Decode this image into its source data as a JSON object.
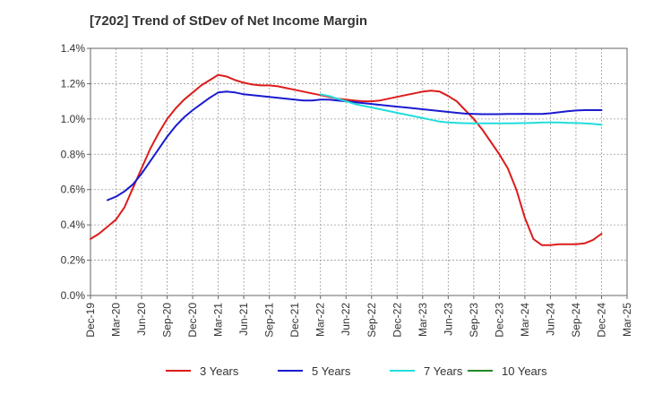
{
  "chart_data": {
    "type": "line",
    "title": "[7202]  Trend of StDev of Net Income Margin",
    "xlabel": "",
    "ylabel": "",
    "x_ticks": [
      "Dec-19",
      "Mar-20",
      "Jun-20",
      "Sep-20",
      "Dec-20",
      "Mar-21",
      "Jun-21",
      "Sep-21",
      "Dec-21",
      "Mar-22",
      "Jun-22",
      "Sep-22",
      "Dec-22",
      "Mar-23",
      "Jun-23",
      "Sep-23",
      "Dec-23",
      "Mar-24",
      "Jun-24",
      "Sep-24",
      "Dec-24",
      "Mar-25"
    ],
    "y_ticks": [
      "0.0%",
      "0.2%",
      "0.4%",
      "0.6%",
      "0.8%",
      "1.0%",
      "1.2%",
      "1.4%"
    ],
    "ylim": [
      0,
      1.4
    ],
    "grid": true,
    "legend_position": "bottom",
    "series": [
      {
        "name": "3 Years",
        "color": "#dd1c1c",
        "x": [
          "Dec-19",
          "Jan-20",
          "Feb-20",
          "Mar-20",
          "Apr-20",
          "May-20",
          "Jun-20",
          "Jul-20",
          "Aug-20",
          "Sep-20",
          "Oct-20",
          "Nov-20",
          "Dec-20",
          "Jan-21",
          "Feb-21",
          "Mar-21",
          "Apr-21",
          "May-21",
          "Jun-21",
          "Jul-21",
          "Aug-21",
          "Sep-21",
          "Oct-21",
          "Nov-21",
          "Dec-21",
          "Jan-22",
          "Feb-22",
          "Mar-22",
          "Apr-22",
          "May-22",
          "Jun-22",
          "Jul-22",
          "Aug-22",
          "Sep-22",
          "Oct-22",
          "Nov-22",
          "Dec-22",
          "Jan-23",
          "Feb-23",
          "Mar-23",
          "Apr-23",
          "May-23",
          "Jun-23",
          "Jul-23",
          "Aug-23",
          "Sep-23",
          "Oct-23",
          "Nov-23",
          "Dec-23",
          "Jan-24",
          "Feb-24",
          "Mar-24",
          "Apr-24",
          "May-24",
          "Jun-24",
          "Jul-24",
          "Aug-24",
          "Sep-24",
          "Oct-24",
          "Nov-24",
          "Dec-24"
        ],
        "values": [
          0.32,
          0.35,
          0.39,
          0.43,
          0.5,
          0.61,
          0.72,
          0.83,
          0.92,
          1.0,
          1.06,
          1.11,
          1.15,
          1.19,
          1.22,
          1.25,
          1.24,
          1.22,
          1.205,
          1.195,
          1.19,
          1.19,
          1.185,
          1.175,
          1.165,
          1.155,
          1.145,
          1.135,
          1.125,
          1.115,
          1.11,
          1.105,
          1.1,
          1.1,
          1.105,
          1.115,
          1.125,
          1.135,
          1.145,
          1.155,
          1.16,
          1.155,
          1.13,
          1.1,
          1.05,
          1.0,
          0.94,
          0.87,
          0.8,
          0.72,
          0.6,
          0.44,
          0.32,
          0.285,
          0.285,
          0.29,
          0.29,
          0.29,
          0.295,
          0.315,
          0.35
        ]
      },
      {
        "name": "5 Years",
        "color": "#1a1ad0",
        "x": [
          "Feb-20",
          "Mar-20",
          "Apr-20",
          "May-20",
          "Jun-20",
          "Jul-20",
          "Aug-20",
          "Sep-20",
          "Oct-20",
          "Nov-20",
          "Dec-20",
          "Jan-21",
          "Feb-21",
          "Mar-21",
          "Apr-21",
          "May-21",
          "Jun-21",
          "Jul-21",
          "Aug-21",
          "Sep-21",
          "Oct-21",
          "Nov-21",
          "Dec-21",
          "Jan-22",
          "Feb-22",
          "Mar-22",
          "Apr-22",
          "May-22",
          "Jun-22",
          "Jul-22",
          "Aug-22",
          "Sep-22",
          "Oct-22",
          "Nov-22",
          "Dec-22",
          "Jan-23",
          "Feb-23",
          "Mar-23",
          "Apr-23",
          "May-23",
          "Jun-23",
          "Jul-23",
          "Aug-23",
          "Sep-23",
          "Oct-23",
          "Nov-23",
          "Dec-23",
          "Jan-24",
          "Feb-24",
          "Mar-24",
          "Apr-24",
          "May-24",
          "Jun-24",
          "Jul-24",
          "Aug-24",
          "Sep-24",
          "Oct-24",
          "Nov-24",
          "Dec-24"
        ],
        "values": [
          0.54,
          0.56,
          0.59,
          0.63,
          0.69,
          0.76,
          0.83,
          0.9,
          0.96,
          1.01,
          1.05,
          1.085,
          1.12,
          1.15,
          1.155,
          1.15,
          1.14,
          1.135,
          1.13,
          1.125,
          1.12,
          1.115,
          1.11,
          1.105,
          1.105,
          1.11,
          1.11,
          1.105,
          1.1,
          1.095,
          1.09,
          1.085,
          1.08,
          1.075,
          1.07,
          1.065,
          1.06,
          1.055,
          1.05,
          1.045,
          1.04,
          1.035,
          1.03,
          1.028,
          1.027,
          1.027,
          1.027,
          1.028,
          1.028,
          1.029,
          1.028,
          1.028,
          1.032,
          1.038,
          1.044,
          1.048,
          1.05,
          1.05,
          1.05
        ]
      },
      {
        "name": "7 Years",
        "color": "#22dddd",
        "x": [
          "Mar-22",
          "Apr-22",
          "May-22",
          "Jun-22",
          "Jul-22",
          "Aug-22",
          "Sep-22",
          "Oct-22",
          "Nov-22",
          "Dec-22",
          "Jan-23",
          "Feb-23",
          "Mar-23",
          "Apr-23",
          "May-23",
          "Jun-23",
          "Jul-23",
          "Aug-23",
          "Sep-23",
          "Oct-23",
          "Nov-23",
          "Dec-23",
          "Jan-24",
          "Feb-24",
          "Mar-24",
          "Apr-24",
          "May-24",
          "Jun-24",
          "Jul-24",
          "Aug-24",
          "Sep-24",
          "Oct-24",
          "Nov-24",
          "Dec-24"
        ],
        "values": [
          1.14,
          1.13,
          1.115,
          1.1,
          1.085,
          1.075,
          1.065,
          1.055,
          1.045,
          1.035,
          1.025,
          1.015,
          1.005,
          0.995,
          0.985,
          0.98,
          0.978,
          0.976,
          0.975,
          0.975,
          0.975,
          0.975,
          0.975,
          0.976,
          0.977,
          0.978,
          0.98,
          0.98,
          0.98,
          0.978,
          0.977,
          0.975,
          0.972,
          0.968
        ]
      },
      {
        "name": "10 Years",
        "color": "#228822",
        "x": [],
        "values": []
      }
    ]
  }
}
